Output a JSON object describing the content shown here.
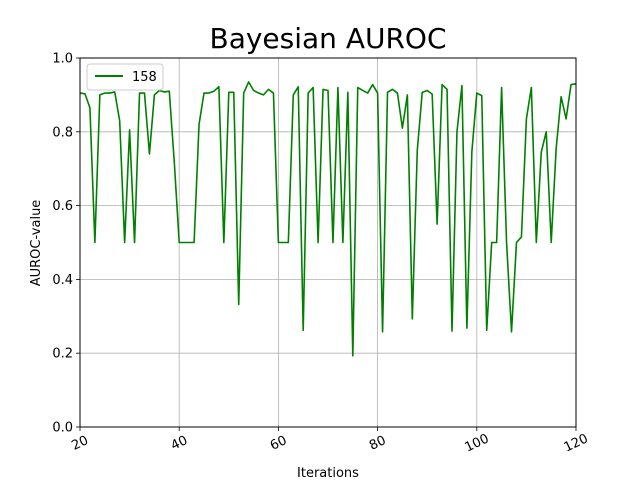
{
  "chart_data": {
    "type": "line",
    "title": "Bayesian AUROC",
    "xlabel": "Iterations",
    "ylabel": "AUROC-value",
    "xlim": [
      20,
      120
    ],
    "ylim": [
      0.0,
      1.0
    ],
    "xticks": [
      "20",
      "40",
      "60",
      "80",
      "100",
      "120"
    ],
    "yticks": [
      "0.0",
      "0.2",
      "0.4",
      "0.6",
      "0.8",
      "1.0"
    ],
    "grid": true,
    "legend_position": "upper-left",
    "colors": {
      "series": "#008000",
      "grid": "#b0b0b0",
      "axis": "#000000"
    },
    "series": [
      {
        "name": "158",
        "x": [
          20,
          21,
          22,
          23,
          24,
          25,
          26,
          27,
          28,
          29,
          30,
          31,
          32,
          33,
          34,
          35,
          36,
          37,
          38,
          39,
          40,
          41,
          42,
          43,
          44,
          45,
          46,
          47,
          48,
          49,
          50,
          51,
          52,
          53,
          54,
          55,
          56,
          57,
          58,
          59,
          60,
          61,
          62,
          63,
          64,
          65,
          66,
          67,
          68,
          69,
          70,
          71,
          72,
          73,
          74,
          75,
          76,
          77,
          78,
          79,
          80,
          81,
          82,
          83,
          84,
          85,
          86,
          87,
          88,
          89,
          90,
          91,
          92,
          93,
          94,
          95,
          96,
          97,
          98,
          99,
          100,
          101,
          102,
          103,
          104,
          105,
          106,
          107,
          108,
          109,
          110,
          111,
          112,
          113,
          114,
          115,
          116,
          117,
          118,
          119,
          120
        ],
        "y": [
          0.905,
          0.903,
          0.865,
          0.5,
          0.9,
          0.905,
          0.905,
          0.908,
          0.83,
          0.5,
          0.805,
          0.5,
          0.905,
          0.905,
          0.74,
          0.9,
          0.912,
          0.908,
          0.91,
          0.72,
          0.5,
          0.5,
          0.5,
          0.5,
          0.82,
          0.905,
          0.905,
          0.91,
          0.922,
          0.5,
          0.907,
          0.907,
          0.332,
          0.905,
          0.935,
          0.912,
          0.905,
          0.9,
          0.915,
          0.905,
          0.5,
          0.5,
          0.5,
          0.9,
          0.922,
          0.262,
          0.905,
          0.92,
          0.5,
          0.915,
          0.912,
          0.5,
          0.92,
          0.5,
          0.907,
          0.193,
          0.92,
          0.912,
          0.905,
          0.928,
          0.905,
          0.258,
          0.907,
          0.915,
          0.905,
          0.81,
          0.9,
          0.293,
          0.75,
          0.907,
          0.912,
          0.902,
          0.55,
          0.928,
          0.915,
          0.26,
          0.8,
          0.925,
          0.268,
          0.745,
          0.905,
          0.898,
          0.262,
          0.5,
          0.5,
          0.92,
          0.5,
          0.258,
          0.5,
          0.515,
          0.835,
          0.92,
          0.5,
          0.745,
          0.8,
          0.5,
          0.755,
          0.895,
          0.835,
          0.928,
          0.93
        ]
      }
    ]
  }
}
